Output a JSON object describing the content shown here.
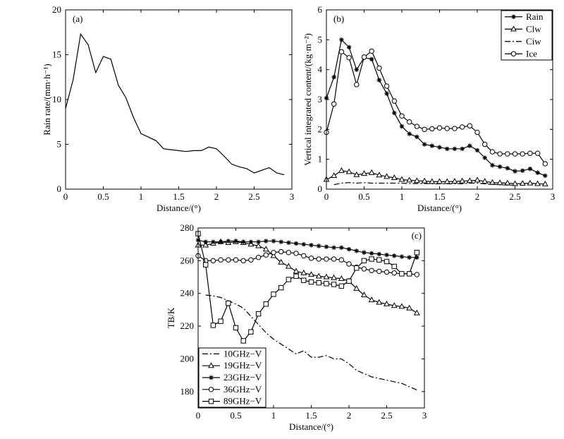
{
  "chart_data": [
    {
      "id": "a",
      "type": "line",
      "panel_label": "(a)",
      "xlabel": "Distance/(°)",
      "ylabel": "Rain rate/(mm·h⁻¹)",
      "xlim": [
        0,
        3
      ],
      "ylim": [
        0,
        20
      ],
      "xticks": [
        0,
        0.5,
        1,
        1.5,
        2,
        2.5,
        3
      ],
      "xtick_labels": [
        "0",
        "0.5",
        "1",
        "1.5",
        "2",
        "2.5",
        "3"
      ],
      "yticks": [
        0,
        5,
        10,
        15,
        20
      ],
      "ytick_labels": [
        "0",
        "5",
        "10",
        "15",
        "20"
      ],
      "legend": null,
      "series": [
        {
          "name": "Rain rate",
          "dash": "",
          "marker": "none",
          "x": [
            0,
            0.1,
            0.2,
            0.3,
            0.4,
            0.5,
            0.6,
            0.7,
            0.8,
            0.9,
            1.0,
            1.1,
            1.2,
            1.3,
            1.4,
            1.5,
            1.6,
            1.7,
            1.8,
            1.9,
            2.0,
            2.1,
            2.2,
            2.3,
            2.4,
            2.5,
            2.6,
            2.7,
            2.8,
            2.9
          ],
          "y": [
            9.0,
            12.2,
            17.3,
            16.1,
            13.0,
            14.8,
            14.5,
            11.6,
            10.2,
            8.0,
            6.2,
            5.8,
            5.4,
            4.5,
            4.4,
            4.3,
            4.2,
            4.3,
            4.3,
            4.7,
            4.5,
            3.7,
            2.8,
            2.5,
            2.3,
            1.8,
            2.1,
            2.4,
            1.8,
            1.6
          ]
        }
      ]
    },
    {
      "id": "b",
      "type": "line",
      "panel_label": "(b)",
      "xlabel": "Distance/(°)",
      "ylabel": "Vertical integrated content/(kg·m⁻²)",
      "xlim": [
        0,
        3
      ],
      "ylim": [
        0,
        6
      ],
      "xticks": [
        0,
        0.5,
        1,
        1.5,
        2,
        2.5,
        3
      ],
      "xtick_labels": [
        "0",
        "0.5",
        "1",
        "1.5",
        "2",
        "2.5",
        "3"
      ],
      "yticks": [
        0,
        1,
        2,
        3,
        4,
        5,
        6
      ],
      "ytick_labels": [
        "0",
        "1",
        "2",
        "3",
        "4",
        "5",
        "6"
      ],
      "legend": "top-right",
      "series": [
        {
          "name": "Rain",
          "dash": "",
          "marker": "star",
          "x": [
            0,
            0.1,
            0.2,
            0.3,
            0.4,
            0.5,
            0.6,
            0.7,
            0.8,
            0.9,
            1.0,
            1.1,
            1.2,
            1.3,
            1.4,
            1.5,
            1.6,
            1.7,
            1.8,
            1.9,
            2.0,
            2.1,
            2.2,
            2.3,
            2.4,
            2.5,
            2.6,
            2.7,
            2.8,
            2.9
          ],
          "y": [
            3.05,
            3.75,
            5.0,
            4.75,
            4.0,
            4.4,
            4.35,
            3.65,
            3.2,
            2.55,
            2.1,
            1.85,
            1.75,
            1.5,
            1.45,
            1.4,
            1.35,
            1.35,
            1.35,
            1.45,
            1.3,
            1.05,
            0.8,
            0.75,
            0.7,
            0.6,
            0.62,
            0.68,
            0.55,
            0.45
          ]
        },
        {
          "name": "Clw",
          "dash": "",
          "marker": "triangle",
          "x": [
            0,
            0.1,
            0.2,
            0.3,
            0.4,
            0.5,
            0.6,
            0.7,
            0.8,
            0.9,
            1.0,
            1.1,
            1.2,
            1.3,
            1.4,
            1.5,
            1.6,
            1.7,
            1.8,
            1.9,
            2.0,
            2.1,
            2.2,
            2.3,
            2.4,
            2.5,
            2.6,
            2.7,
            2.8,
            2.9
          ],
          "y": [
            0.32,
            0.45,
            0.62,
            0.58,
            0.48,
            0.52,
            0.55,
            0.47,
            0.42,
            0.38,
            0.32,
            0.3,
            0.28,
            0.27,
            0.25,
            0.25,
            0.25,
            0.26,
            0.27,
            0.28,
            0.3,
            0.26,
            0.22,
            0.21,
            0.2,
            0.18,
            0.19,
            0.2,
            0.18,
            0.17
          ]
        },
        {
          "name": "Ciw",
          "dash": "8 3 2 3",
          "marker": "none",
          "x": [
            0.1,
            0.2,
            0.3,
            0.4,
            0.5,
            0.6,
            0.7,
            0.8,
            0.9,
            1.0,
            1.1,
            1.2,
            1.3,
            1.4,
            1.5,
            1.6,
            1.7,
            1.8,
            1.9,
            2.0,
            2.1,
            2.2,
            2.3,
            2.4,
            2.5
          ],
          "y": [
            0.15,
            0.2,
            0.22,
            0.2,
            0.22,
            0.2,
            0.2,
            0.2,
            0.2,
            0.2,
            0.19,
            0.19,
            0.19,
            0.18,
            0.18,
            0.18,
            0.18,
            0.18,
            0.2,
            0.2,
            0.18,
            0.16,
            0.15,
            0.14,
            0.13
          ]
        },
        {
          "name": "Ice",
          "dash": "",
          "marker": "circle",
          "x": [
            0,
            0.1,
            0.2,
            0.3,
            0.4,
            0.5,
            0.6,
            0.7,
            0.8,
            0.9,
            1.0,
            1.1,
            1.2,
            1.3,
            1.4,
            1.5,
            1.6,
            1.7,
            1.8,
            1.9,
            2.0,
            2.1,
            2.2,
            2.3,
            2.4,
            2.5,
            2.6,
            2.7,
            2.8,
            2.9
          ],
          "y": [
            1.9,
            2.85,
            4.6,
            4.4,
            3.5,
            4.42,
            4.62,
            4.05,
            3.45,
            2.95,
            2.45,
            2.25,
            2.1,
            2.0,
            2.02,
            2.05,
            2.03,
            2.03,
            2.08,
            2.12,
            1.9,
            1.5,
            1.25,
            1.18,
            1.18,
            1.18,
            1.18,
            1.2,
            1.2,
            0.85
          ]
        }
      ]
    },
    {
      "id": "c",
      "type": "line",
      "panel_label": "(c)",
      "xlabel": "Distance/(°)",
      "ylabel": "TB/K",
      "xlim": [
        0,
        3
      ],
      "ylim": [
        170,
        280
      ],
      "xticks": [
        0,
        0.5,
        1,
        1.5,
        2,
        2.5,
        3
      ],
      "xtick_labels": [
        "0",
        "0.5",
        "1",
        "1.5",
        "2",
        "2.5",
        "3"
      ],
      "yticks": [
        180,
        200,
        220,
        240,
        260,
        280
      ],
      "ytick_labels": [
        "180",
        "200",
        "220",
        "240",
        "260",
        "280"
      ],
      "legend": "bottom-left",
      "series": [
        {
          "name": "10GHz−V",
          "dash": "8 3 2 3",
          "marker": "none",
          "x": [
            0.1,
            0.2,
            0.3,
            0.4,
            0.5,
            0.6,
            0.7,
            0.8,
            0.9,
            1.0,
            1.1,
            1.2,
            1.3,
            1.4,
            1.5,
            1.6,
            1.7,
            1.8,
            1.9,
            2.0,
            2.1,
            2.2,
            2.3,
            2.4,
            2.5,
            2.6,
            2.7,
            2.8,
            2.9
          ],
          "y": [
            239,
            238.5,
            237.5,
            235.5,
            233.5,
            231,
            226,
            221,
            216,
            212,
            209,
            206,
            203,
            205,
            201,
            201,
            202,
            200,
            200,
            197,
            193,
            191,
            189,
            188,
            187,
            186,
            185,
            183,
            181
          ]
        },
        {
          "name": "19GHz−V",
          "dash": "",
          "marker": "triangle",
          "x": [
            0,
            0.1,
            0.2,
            0.3,
            0.4,
            0.5,
            0.6,
            0.7,
            0.8,
            0.9,
            1.0,
            1.1,
            1.2,
            1.3,
            1.4,
            1.5,
            1.6,
            1.7,
            1.8,
            1.9,
            2.0,
            2.1,
            2.2,
            2.3,
            2.4,
            2.5,
            2.6,
            2.7,
            2.8,
            2.9
          ],
          "y": [
            269.5,
            269.5,
            270.5,
            271.5,
            271,
            271.5,
            271,
            270,
            269,
            267,
            263,
            259,
            256.5,
            253.5,
            252.5,
            251.5,
            250.5,
            250,
            249.5,
            249,
            247.5,
            243,
            239,
            236,
            234.5,
            233.5,
            232.5,
            232,
            231,
            228
          ]
        },
        {
          "name": "23GHz−V",
          "dash": "",
          "marker": "star",
          "x": [
            0,
            0.1,
            0.2,
            0.3,
            0.4,
            0.5,
            0.6,
            0.7,
            0.8,
            0.9,
            1.0,
            1.1,
            1.2,
            1.3,
            1.4,
            1.5,
            1.6,
            1.7,
            1.8,
            1.9,
            2.0,
            2.1,
            2.2,
            2.3,
            2.4,
            2.5,
            2.6,
            2.7,
            2.8,
            2.9
          ],
          "y": [
            272.5,
            271.5,
            271.5,
            271.5,
            272,
            272,
            271.5,
            271.5,
            271.5,
            272,
            272,
            271.5,
            271,
            270.5,
            270,
            269.5,
            269,
            268.5,
            268,
            268,
            267,
            266,
            265,
            264.5,
            264,
            263.5,
            263,
            262.5,
            262,
            262
          ]
        },
        {
          "name": "36GHz−V",
          "dash": "",
          "marker": "circle",
          "x": [
            0,
            0.1,
            0.2,
            0.3,
            0.4,
            0.5,
            0.6,
            0.7,
            0.8,
            0.9,
            1.0,
            1.1,
            1.2,
            1.3,
            1.4,
            1.5,
            1.6,
            1.7,
            1.8,
            1.9,
            2.0,
            2.1,
            2.2,
            2.3,
            2.4,
            2.5,
            2.6,
            2.7,
            2.8,
            2.9
          ],
          "y": [
            263,
            260,
            260,
            260.5,
            260.5,
            260.5,
            260,
            260.5,
            262,
            263.5,
            265,
            265.5,
            265,
            264.5,
            263,
            261.5,
            261,
            261,
            261,
            260.5,
            258,
            256,
            255,
            254,
            253.5,
            253,
            252.5,
            252,
            252,
            251.5
          ]
        },
        {
          "name": "89GHz−V",
          "dash": "",
          "marker": "square",
          "x": [
            0,
            0.1,
            0.2,
            0.3,
            0.4,
            0.5,
            0.6,
            0.7,
            0.8,
            0.9,
            1.0,
            1.1,
            1.2,
            1.3,
            1.4,
            1.5,
            1.6,
            1.7,
            1.8,
            1.9,
            2.0,
            2.1,
            2.2,
            2.3,
            2.4,
            2.5,
            2.6,
            2.7,
            2.8,
            2.9
          ],
          "y": [
            276.5,
            257.5,
            220.5,
            223,
            234,
            219,
            211,
            216.5,
            227.5,
            233.5,
            239.5,
            243.5,
            248.5,
            250.5,
            248,
            247,
            246.5,
            246,
            245.5,
            244.5,
            247.5,
            255.5,
            260,
            261,
            260.5,
            259.5,
            256.5,
            252,
            252,
            265
          ]
        }
      ]
    }
  ]
}
